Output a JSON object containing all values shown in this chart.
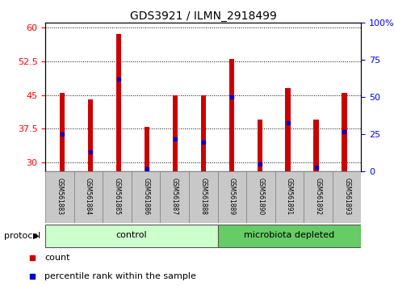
{
  "title": "GDS3921 / ILMN_2918499",
  "samples": [
    "GSM561883",
    "GSM561884",
    "GSM561885",
    "GSM561886",
    "GSM561887",
    "GSM561888",
    "GSM561889",
    "GSM561890",
    "GSM561891",
    "GSM561892",
    "GSM561893"
  ],
  "counts": [
    45.5,
    44.0,
    58.5,
    38.0,
    45.0,
    45.0,
    53.0,
    39.5,
    46.5,
    39.5,
    45.5
  ],
  "percentile_ranks": [
    25,
    13,
    62,
    2,
    22,
    20,
    50,
    5,
    33,
    3,
    27
  ],
  "ylim_left": [
    28,
    61
  ],
  "ylim_right": [
    0,
    100
  ],
  "yticks_left": [
    30,
    37.5,
    45,
    52.5,
    60
  ],
  "yticks_right": [
    0,
    25,
    50,
    75,
    100
  ],
  "ytick_labels_left": [
    "30",
    "37.5",
    "45",
    "52.5",
    "60"
  ],
  "ytick_labels_right": [
    "0",
    "25",
    "50",
    "75",
    "100%"
  ],
  "bar_color": "#cc0000",
  "percentile_color": "#0000cc",
  "n_control": 6,
  "n_micro": 5,
  "control_color": "#ccffcc",
  "microbiota_color": "#66cc66",
  "control_label": "control",
  "microbiota_label": "microbiota depleted",
  "protocol_label": "protocol",
  "legend_count": "count",
  "legend_percentile": "percentile rank within the sample",
  "tick_area_color": "#c8c8c8",
  "bar_width": 0.18
}
